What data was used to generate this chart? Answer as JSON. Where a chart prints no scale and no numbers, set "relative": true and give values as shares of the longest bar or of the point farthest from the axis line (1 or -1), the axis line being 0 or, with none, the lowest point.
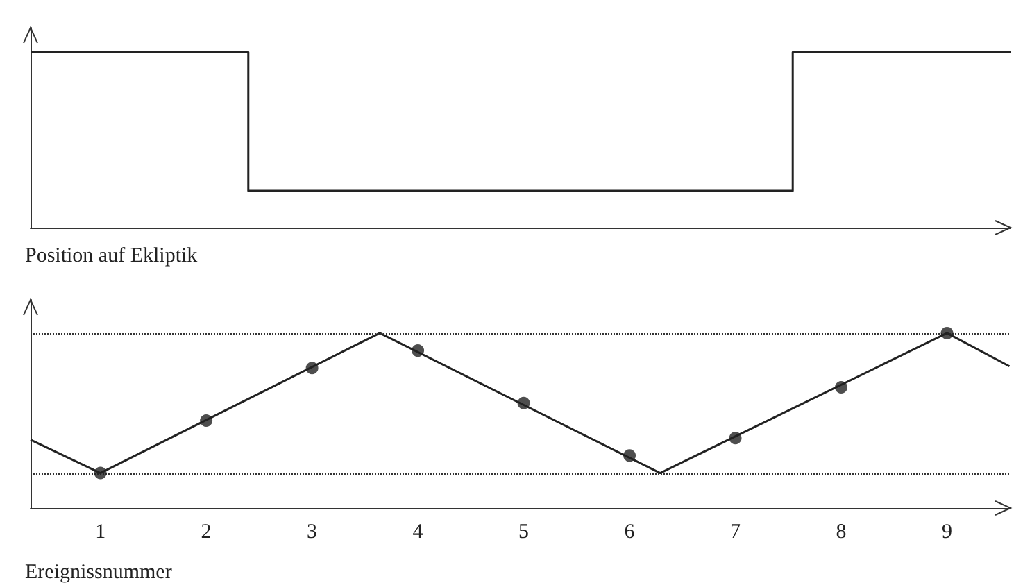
{
  "chart_data": [
    {
      "type": "step",
      "xlabel": "Position auf Ekliptik",
      "categories": [
        null,
        null,
        null,
        null,
        null,
        null,
        null,
        null,
        null,
        null
      ],
      "values": [
        1,
        1,
        0.21,
        0.21,
        0.21,
        0.21,
        0.21,
        1,
        1,
        1
      ],
      "color": "#222222",
      "relative": true,
      "grid": false
    },
    {
      "type": "line",
      "xlabel": "Ereignissnummer",
      "xlim": [
        0.34,
        9.6
      ],
      "xticks": [
        1,
        2,
        3,
        4,
        5,
        6,
        7,
        8,
        9
      ],
      "relative": true,
      "grid": false,
      "series": [
        {
          "type": "line",
          "x": [
            0.34,
            1,
            3.64,
            6.29,
            9,
            9.59
          ],
          "values": [
            0.39,
            0.2,
            1,
            0.2,
            1,
            0.81
          ],
          "color": "#222222",
          "marker": "none"
        },
        {
          "type": "scatter",
          "x": [
            1,
            2,
            3,
            4,
            5,
            6,
            7,
            8,
            9
          ],
          "values": [
            0.2,
            0.5,
            0.8,
            0.9,
            0.6,
            0.3,
            0.4,
            0.69,
            1
          ],
          "color": "#222222",
          "marker": "circle"
        }
      ],
      "ref_lines": [
        {
          "axis": "y",
          "value": 1,
          "line_style": "dotted",
          "color": "#333333"
        },
        {
          "axis": "y",
          "value": 0.2,
          "line_style": "dotted",
          "color": "#333333"
        }
      ]
    }
  ]
}
